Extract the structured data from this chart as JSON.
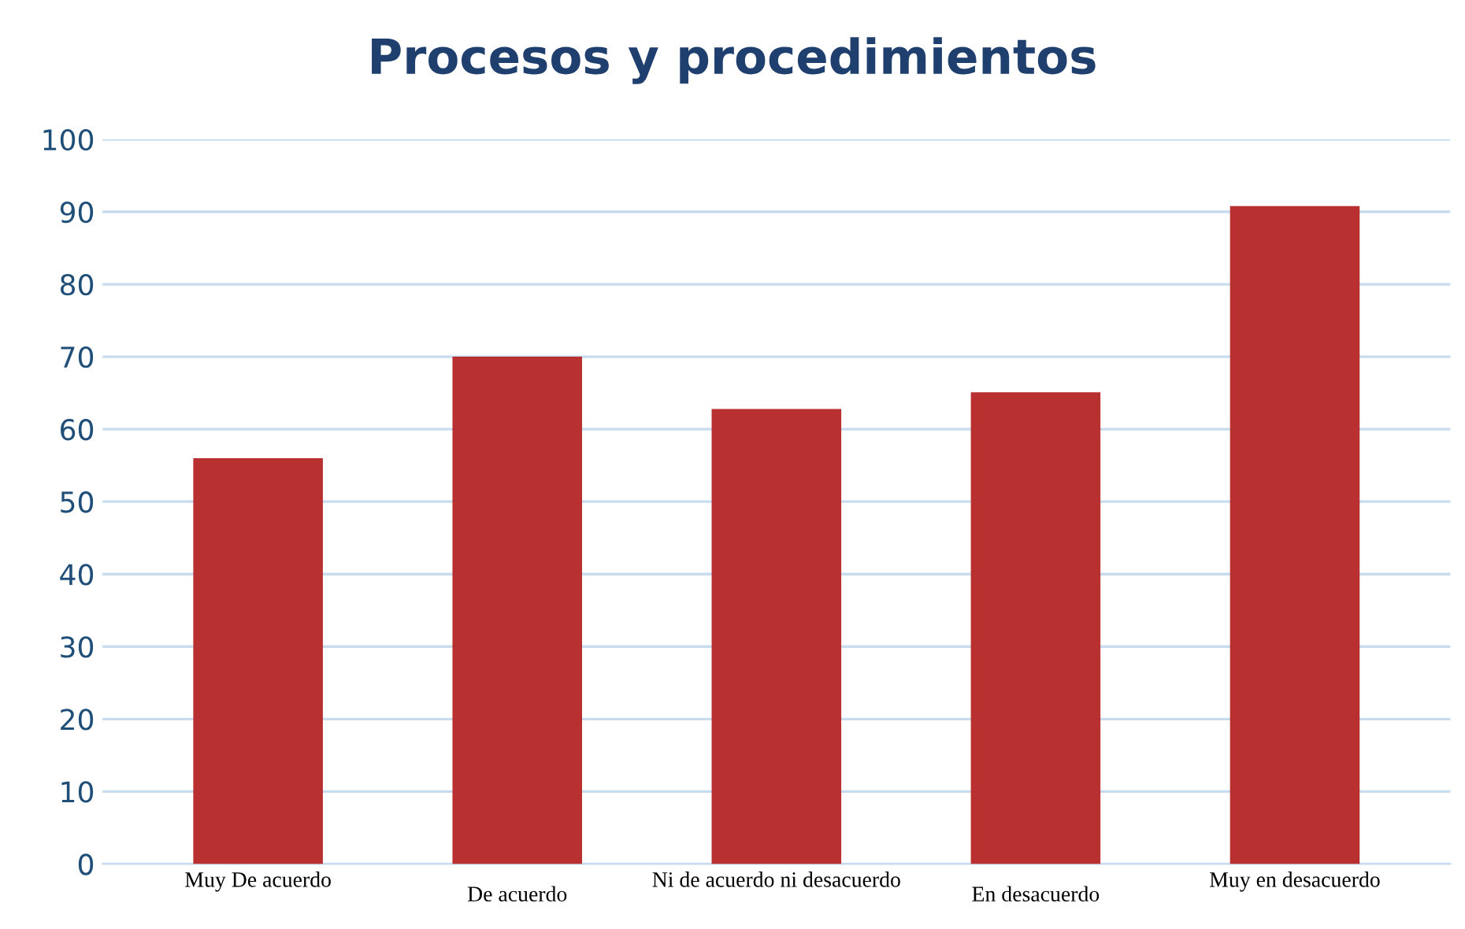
{
  "chart_data": {
    "type": "bar",
    "title": "Procesos y procedimientos",
    "categories": [
      "Muy De acuerdo",
      "De acuerdo",
      "Ni de acuerdo ni desacuerdo",
      "En desacuerdo",
      "Muy en desacuerdo"
    ],
    "values": [
      56,
      70,
      62.8,
      65.1,
      90.8
    ],
    "color": "#b83030",
    "ylim": [
      0,
      100
    ],
    "yticks": [
      0,
      10,
      20,
      30,
      40,
      50,
      60,
      70,
      80,
      90,
      100
    ],
    "grid": "y",
    "legend": false
  }
}
